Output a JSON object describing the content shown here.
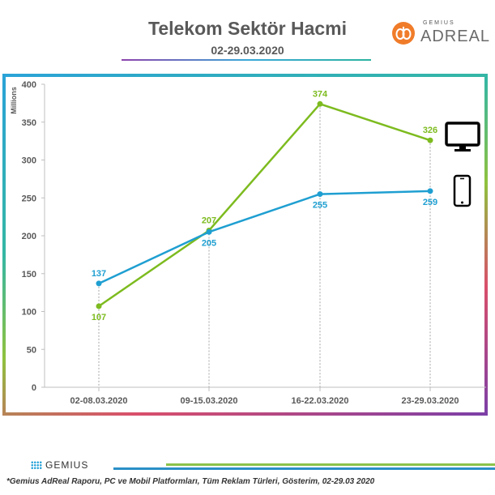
{
  "header": {
    "title": "Telekom Sektör Hacmi",
    "subtitle": "02-29.03.2020"
  },
  "brand": {
    "top_logo_small": "GEMIUS",
    "top_logo": "ADREAL",
    "footer_logo": "GEMIUS",
    "accent_orange": "#f07c2a"
  },
  "footnote": "*Gemius AdReal Raporu, PC ve Mobil Platformları, Tüm Reklam Türleri, Gösterim, 02-29.03 2020",
  "chart_data": {
    "type": "line",
    "title": "Telekom Sektör Hacmi",
    "subtitle": "02-29.03.2020",
    "ylabel": "Millions",
    "xlabel": "",
    "ylim": [
      0,
      400
    ],
    "yticks": [
      0,
      50,
      100,
      150,
      200,
      250,
      300,
      350,
      400
    ],
    "categories": [
      "02-08.03.2020",
      "09-15.03.2020",
      "16-22.03.2020",
      "23-29.03.2020"
    ],
    "grid": false,
    "legend": "icons-right",
    "series": [
      {
        "icon": "desktop-monitor-icon",
        "color": "#7dbb1f",
        "values": [
          107,
          207,
          374,
          326
        ],
        "label_pos": [
          "below",
          "above",
          "above",
          "above"
        ]
      },
      {
        "icon": "smartphone-icon",
        "color": "#1f9fd1",
        "values": [
          137,
          205,
          255,
          259
        ],
        "label_pos": [
          "above",
          "below",
          "below",
          "below"
        ]
      }
    ]
  }
}
